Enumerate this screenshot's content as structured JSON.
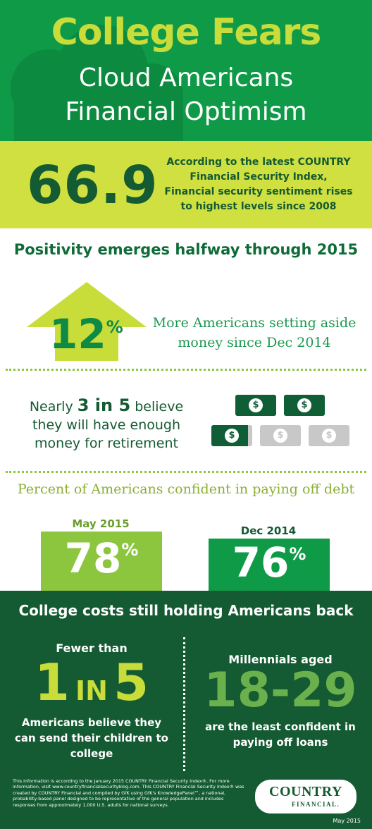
{
  "header": {
    "title_line1": "College Fears",
    "title_line2": "Cloud Americans",
    "title_line3": "Financial Optimism"
  },
  "index_band": {
    "value": "66.9",
    "description": "According to the latest COUNTRY Financial Security Index, Financial security sentiment rises to highest levels since 2008"
  },
  "positivity": {
    "heading": "Positivity emerges halfway through 2015",
    "percent": "12",
    "percent_sign": "%",
    "text": "More Americans setting aside money since Dec 2014"
  },
  "retirement": {
    "text_pre": "Nearly ",
    "text_bold": "3 in 5",
    "text_post": " believe they will have enough money for retirement",
    "bill_symbol": "$",
    "ratio": {
      "confident": 3,
      "total": 5
    }
  },
  "debt": {
    "heading": "Percent of Americans confident in paying off debt",
    "may_label": "May 2015",
    "may_value": "78",
    "dec_label": "Dec 2014",
    "dec_value": "76",
    "percent_sign": "%"
  },
  "college": {
    "heading": "College costs still holding Americans back",
    "left_intro": "Fewer than",
    "left_num1": "1",
    "left_in": "IN",
    "left_num2": "5",
    "left_text": "Americans believe they can send their children to college",
    "right_intro": "Millennials aged",
    "right_value": "18-29",
    "right_text": "are the least confident in paying off loans"
  },
  "footer": {
    "note": "This information is according to the January 2015 COUNTRY Financial Security Index®. For more information, visit www.countryfinancialsecurityblog.com. This COUNTRY Financial Security Index® was created by COUNTRY Financial and compiled by GfK using GfK's KnowledgePanel™, a national, probability-based panel designed to be representative of the general population and includes responses from approximately 1,000 U.S. adults for national surveys.",
    "logo_top": "COUNTRY",
    "logo_bottom": "FINANCIAL.",
    "date": "May 2015"
  },
  "colors": {
    "header_green": "#0f9a48",
    "lime": "#cfe040",
    "dark_green": "#145a32",
    "light_green": "#8cc63f"
  },
  "icons": [
    "cloud-icon",
    "up-arrow-icon",
    "dollar-bill-icon"
  ]
}
